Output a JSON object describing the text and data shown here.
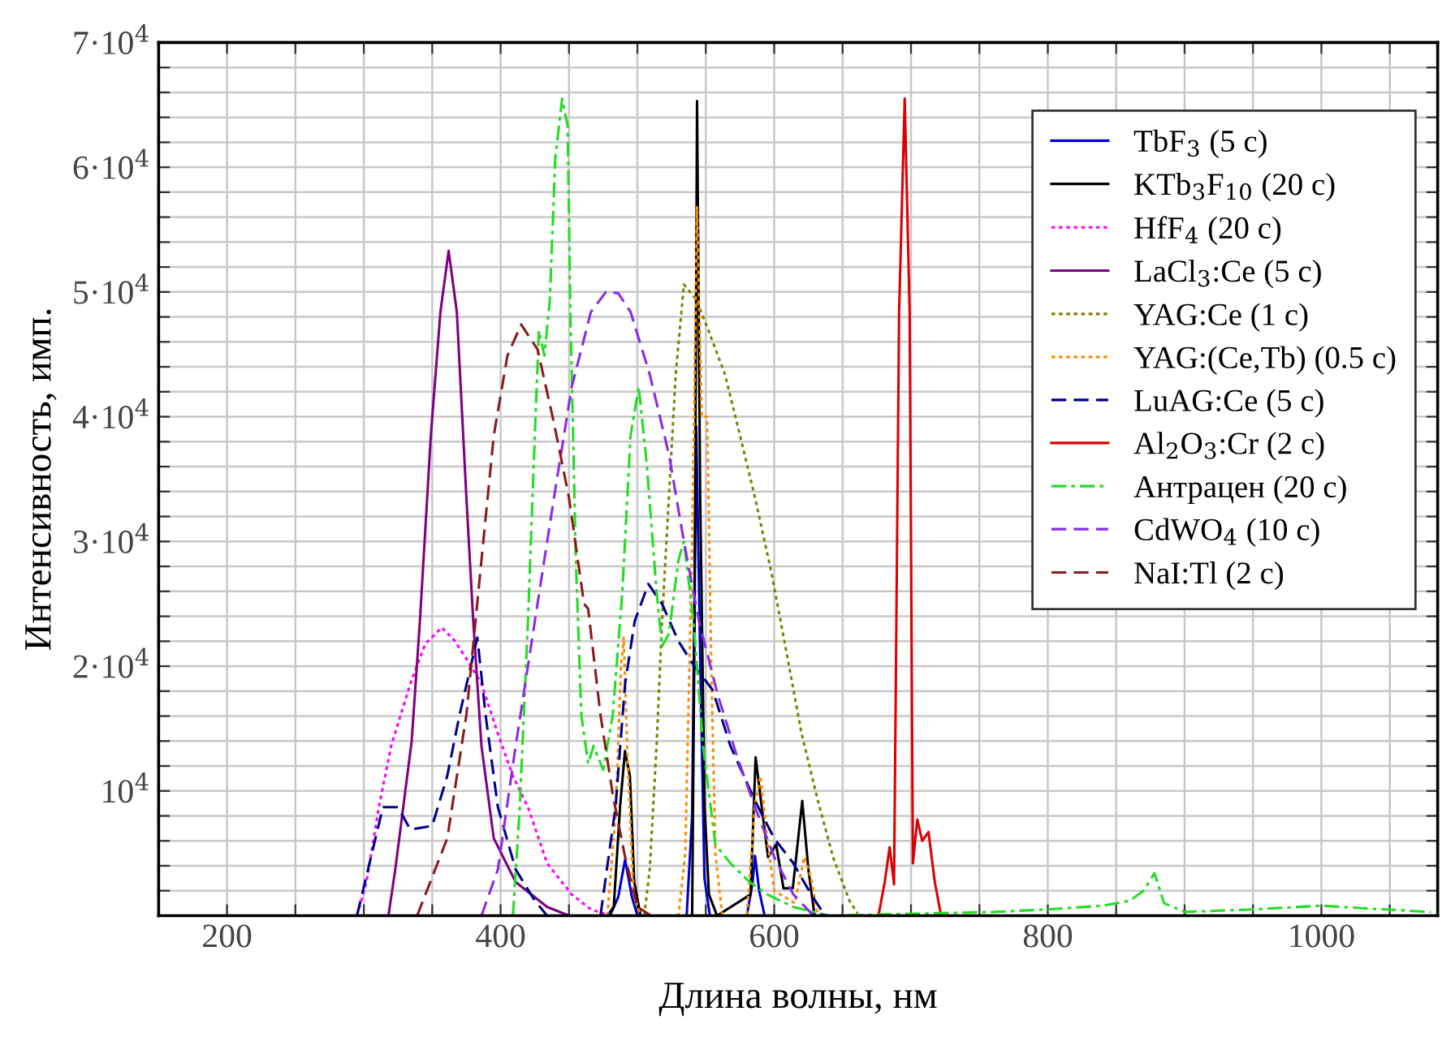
{
  "chart_data": {
    "type": "line",
    "xlabel": "Длина волны, нм",
    "ylabel": "Интенсивность, имп.",
    "xlim": [
      150,
      1085
    ],
    "xticks": [
      {
        "value": 150,
        "label": null
      },
      200,
      {
        "value": 250,
        "label": null
      },
      {
        "value": 300,
        "label": null
      },
      {
        "value": 350,
        "label": null
      },
      400,
      {
        "value": 450,
        "label": null
      },
      {
        "value": 500,
        "label": null
      },
      {
        "value": 550,
        "label": null
      },
      600,
      {
        "value": 650,
        "label": null
      },
      {
        "value": 700,
        "label": null
      },
      {
        "value": 750,
        "label": null
      },
      800,
      {
        "value": 850,
        "label": null
      },
      {
        "value": 900,
        "label": null
      },
      {
        "value": 950,
        "label": null
      },
      1000,
      {
        "value": 1050,
        "label": null
      }
    ],
    "ylim": [
      0,
      70000
    ],
    "yticks": [
      {
        "value": 2000,
        "label": null
      },
      {
        "value": 4000,
        "label": null
      },
      {
        "value": 6000,
        "label": null
      },
      {
        "value": 8000,
        "label": null
      },
      {
        "value": 10000,
        "label": "10$^{4}$"
      },
      {
        "value": 12000,
        "label": null
      },
      {
        "value": 14000,
        "label": null
      },
      {
        "value": 16000,
        "label": null
      },
      {
        "value": 18000,
        "label": null
      },
      {
        "value": 20000,
        "label": "2·10$^{4}$"
      },
      {
        "value": 22000,
        "label": null
      },
      {
        "value": 24000,
        "label": null
      },
      {
        "value": 26000,
        "label": null
      },
      {
        "value": 28000,
        "label": null
      },
      {
        "value": 30000,
        "label": "3·10$^{4}$"
      },
      {
        "value": 32000,
        "label": null
      },
      {
        "value": 34000,
        "label": null
      },
      {
        "value": 36000,
        "label": null
      },
      {
        "value": 38000,
        "label": null
      },
      {
        "value": 40000,
        "label": "4·10$^{4}$"
      },
      {
        "value": 42000,
        "label": null
      },
      {
        "value": 44000,
        "label": null
      },
      {
        "value": 46000,
        "label": null
      },
      {
        "value": 48000,
        "label": null
      },
      {
        "value": 50000,
        "label": "5·10$^{4}$"
      },
      {
        "value": 52000,
        "label": null
      },
      {
        "value": 54000,
        "label": null
      },
      {
        "value": 56000,
        "label": null
      },
      {
        "value": 58000,
        "label": null
      },
      {
        "value": 60000,
        "label": "6·10$^{4}$"
      },
      {
        "value": 62000,
        "label": null
      },
      {
        "value": 64000,
        "label": null
      },
      {
        "value": 66000,
        "label": null
      },
      {
        "value": 68000,
        "label": null
      },
      {
        "value": 70000,
        "label": "7·10$^{4}$"
      }
    ],
    "grid": true,
    "legend": "top right",
    "series": [
      {
        "name": "TbF$_{3}$ (5 с)",
        "color": "#0000cc",
        "line_style": "solid",
        "x": [
          480,
          486,
          491,
          496,
          500,
          536,
          540,
          543,
          546,
          549,
          553,
          580,
          584,
          586,
          589,
          593
        ],
        "values": [
          0,
          1500,
          4500,
          1500,
          0,
          0,
          8000,
          39200,
          20000,
          3000,
          0,
          0,
          2500,
          4800,
          2000,
          0
        ]
      },
      {
        "name": "KTb$_{3}$F$_{10}$ (20 с)",
        "color": "#000000",
        "line_style": "solid",
        "x": [
          478,
          482.7,
          487.3,
          490.9,
          494.5,
          497.7,
          502.3,
          540,
          541.8,
          543.6,
          545.9,
          549.1,
          552.3,
          558.2,
          582.7,
          586.4,
          590.9,
          595.5,
          601.4,
          606.8,
          613.6,
          620.5,
          625,
          629.5
        ],
        "values": [
          0,
          700,
          8700,
          13200,
          11200,
          2700,
          0,
          0,
          23600,
          65300,
          33500,
          8700,
          1700,
          0,
          1700,
          12700,
          8700,
          4700,
          5700,
          2200,
          2200,
          9200,
          3700,
          0
        ]
      },
      {
        "name": "HfF$_{4}$ (20 с)",
        "color": "#ff00ff",
        "line_style": "dotted",
        "x": [
          295,
          302,
          311,
          320,
          334,
          345,
          357,
          366,
          375,
          386,
          398,
          409,
          420,
          434,
          452,
          466,
          480
        ],
        "values": [
          0,
          2700,
          8700,
          13600,
          18600,
          21800,
          23100,
          22100,
          20600,
          18600,
          14600,
          11200,
          8700,
          4200,
          1700,
          500,
          0
        ]
      },
      {
        "name": "LaCl$_{3}$:Ce (5 с)",
        "color": "#800080",
        "line_style": "solid",
        "x": [
          318,
          323,
          335,
          341,
          349,
          356,
          362,
          368,
          375,
          380,
          386,
          395,
          411,
          434,
          450
        ],
        "values": [
          0,
          3700,
          14000,
          23600,
          38500,
          48400,
          53300,
          48400,
          33500,
          23600,
          13600,
          6200,
          2700,
          700,
          0
        ]
      },
      {
        "name": "YAG:Ce (1 с)",
        "color": "#808000",
        "line_style": "dotted",
        "x": [
          505,
          509,
          514,
          518,
          523,
          528,
          534,
          543,
          552,
          564,
          575,
          586,
          598,
          609,
          620,
          632,
          643,
          655,
          661
        ],
        "values": [
          0,
          3700,
          13600,
          23600,
          33500,
          43400,
          50600,
          49400,
          46900,
          43400,
          38500,
          33500,
          27500,
          21100,
          14600,
          9200,
          4700,
          1200,
          200
        ]
      },
      {
        "name": "YAG:(Ce,Tb) (0.5 с)",
        "color": "#ff8c00",
        "line_style": "dotted",
        "x": [
          478,
          484,
          488,
          490,
          493,
          497,
          502,
          530,
          535,
          540,
          543.6,
          547,
          551,
          554,
          557,
          562,
          580,
          586,
          590,
          595,
          600,
          615,
          622,
          627,
          632
        ],
        "values": [
          0,
          8000,
          20000,
          22300,
          12000,
          2000,
          0,
          0,
          5000,
          30000,
          56800,
          40000,
          40000,
          20000,
          5000,
          0,
          0,
          9000,
          11200,
          6000,
          2000,
          1000,
          4700,
          3000,
          0
        ]
      },
      {
        "name": "LuAG:Ce (5 с)",
        "color": "#00008b",
        "line_style": "dashed",
        "x": [
          295,
          314,
          320,
          325,
          334,
          350,
          361,
          370,
          383,
          389,
          398,
          411,
          425,
          434,
          473,
          484,
          491,
          498,
          508,
          518,
          530,
          541,
          555,
          568,
          586,
          600,
          614,
          627,
          636
        ],
        "values": [
          0,
          8700,
          8700,
          8700,
          6900,
          7200,
          11200,
          16100,
          22300,
          16100,
          8700,
          3700,
          1200,
          0,
          0,
          8700,
          18600,
          23600,
          26600,
          25000,
          22000,
          20100,
          18100,
          13600,
          9200,
          6200,
          4200,
          1700,
          200
        ]
      },
      {
        "name": "Al$_{2}$O$_{3}$:Cr (2 с)",
        "color": "#dd0000",
        "line_style": "solid",
        "x": [
          676.2,
          680.8,
          684.4,
          687.6,
          691.3,
          695.4,
          699,
          701.4,
          704.6,
          708.2,
          712.8,
          717.4,
          722
        ],
        "values": [
          0,
          2700,
          5500,
          2500,
          48400,
          65500,
          48400,
          4200,
          7700,
          6000,
          6700,
          2700,
          0
        ]
      },
      {
        "name": "Антрацен (20 с)",
        "color": "#22dd22",
        "line_style": "dashdot",
        "x": [
          409,
          414,
          420,
          425,
          428,
          432,
          436,
          440,
          445,
          449,
          451,
          455,
          459,
          464,
          468,
          475,
          482,
          489,
          495,
          501,
          507,
          514,
          518,
          523,
          530,
          534,
          541,
          548,
          557,
          568,
          582,
          595,
          614,
          640,
          760,
          800,
          840,
          860,
          870,
          878,
          885,
          900,
          950,
          1000,
          1030,
          1080
        ],
        "values": [
          0,
          8700,
          23600,
          38500,
          46900,
          44900,
          49400,
          60800,
          65500,
          63300,
          48400,
          28500,
          16100,
          12200,
          13600,
          11700,
          16100,
          26000,
          38500,
          42400,
          36000,
          26000,
          21600,
          22600,
          28500,
          30000,
          23600,
          13600,
          5700,
          4200,
          2700,
          1700,
          700,
          0,
          300,
          500,
          800,
          1200,
          2000,
          3400,
          1000,
          300,
          500,
          800,
          600,
          300
        ]
      },
      {
        "name": "CdWO$_{4}$ (10 с)",
        "color": "#8a2be2",
        "line_style": "dashed",
        "x": [
          386,
          398,
          411,
          425,
          439,
          452,
          466,
          477,
          486,
          495,
          509,
          523,
          534,
          545,
          559,
          573,
          586,
          600,
          614,
          627,
          640
        ],
        "values": [
          0,
          3700,
          13600,
          23600,
          33500,
          42400,
          48400,
          50000,
          49900,
          48400,
          43400,
          37000,
          30000,
          23600,
          17600,
          12700,
          8700,
          4700,
          1700,
          200,
          0
        ]
      },
      {
        "name": "NaI:Tl (2 с)",
        "color": "#8b1a1a",
        "line_style": "dashed",
        "x": [
          339,
          361,
          375,
          386,
          395,
          405,
          415,
          427,
          439,
          450,
          461,
          464,
          473,
          482,
          491,
          500,
          510
        ],
        "values": [
          0,
          6200,
          16100,
          28500,
          38500,
          44900,
          47400,
          45400,
          39500,
          33500,
          25000,
          24600,
          16100,
          9700,
          4700,
          700,
          0
        ]
      }
    ]
  }
}
